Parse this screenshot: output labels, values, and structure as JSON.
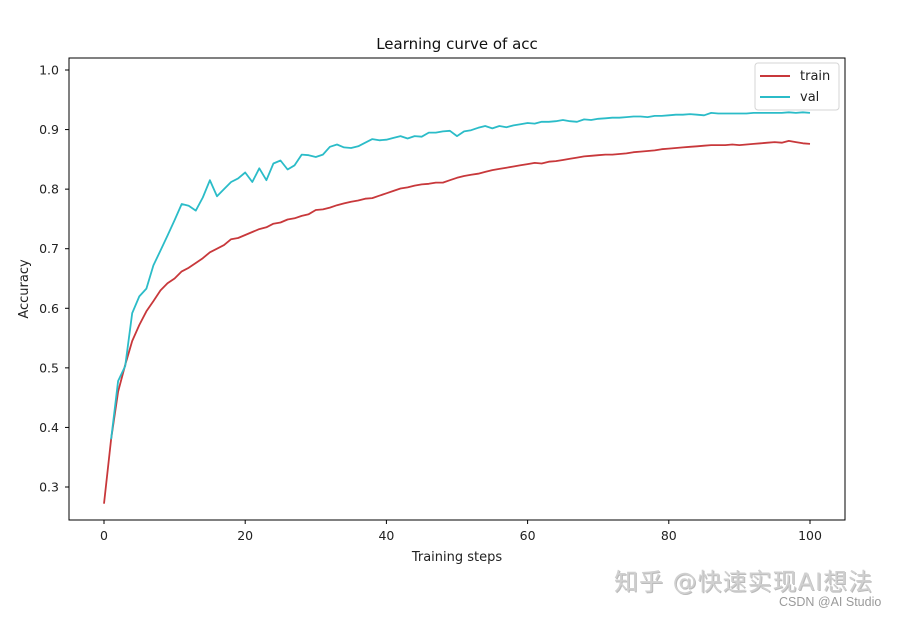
{
  "chart_data": {
    "type": "line",
    "title": "Learning curve of acc",
    "xlabel": "Training steps",
    "ylabel": "Accuracy",
    "xlim": [
      -5,
      105
    ],
    "ylim": [
      0.245,
      1.02
    ],
    "xticks": [
      0,
      20,
      40,
      60,
      80,
      100
    ],
    "yticks": [
      0.3,
      0.4,
      0.5,
      0.6,
      0.7,
      0.8,
      0.9,
      1.0
    ],
    "grid": false,
    "legend_position": "upper right",
    "series": [
      {
        "name": "train",
        "color": "#c8383b",
        "x": [
          0,
          1,
          2,
          3,
          4,
          5,
          6,
          7,
          8,
          9,
          10,
          11,
          12,
          13,
          14,
          15,
          16,
          17,
          18,
          19,
          20,
          21,
          22,
          23,
          24,
          25,
          26,
          27,
          28,
          29,
          30,
          31,
          32,
          33,
          34,
          35,
          36,
          37,
          38,
          39,
          40,
          41,
          42,
          43,
          44,
          45,
          46,
          47,
          48,
          49,
          50,
          51,
          52,
          53,
          54,
          55,
          56,
          57,
          58,
          59,
          60,
          61,
          62,
          63,
          64,
          65,
          66,
          67,
          68,
          69,
          70,
          71,
          72,
          73,
          74,
          75,
          76,
          77,
          78,
          79,
          80,
          81,
          82,
          83,
          84,
          85,
          86,
          87,
          88,
          89,
          90,
          91,
          92,
          93,
          94,
          95,
          96,
          97,
          98,
          99,
          100
        ],
        "values": [
          0.272,
          0.38,
          0.46,
          0.505,
          0.545,
          0.572,
          0.595,
          0.612,
          0.63,
          0.642,
          0.65,
          0.662,
          0.668,
          0.676,
          0.684,
          0.694,
          0.7,
          0.706,
          0.716,
          0.718,
          0.723,
          0.728,
          0.733,
          0.736,
          0.742,
          0.744,
          0.749,
          0.751,
          0.755,
          0.758,
          0.765,
          0.766,
          0.769,
          0.773,
          0.776,
          0.779,
          0.781,
          0.784,
          0.785,
          0.789,
          0.793,
          0.797,
          0.801,
          0.803,
          0.806,
          0.808,
          0.809,
          0.811,
          0.811,
          0.815,
          0.819,
          0.822,
          0.824,
          0.826,
          0.829,
          0.832,
          0.834,
          0.836,
          0.838,
          0.84,
          0.842,
          0.844,
          0.843,
          0.846,
          0.847,
          0.849,
          0.851,
          0.853,
          0.855,
          0.856,
          0.857,
          0.858,
          0.858,
          0.859,
          0.86,
          0.862,
          0.863,
          0.864,
          0.865,
          0.867,
          0.868,
          0.869,
          0.87,
          0.871,
          0.872,
          0.873,
          0.874,
          0.874,
          0.874,
          0.875,
          0.874,
          0.875,
          0.876,
          0.877,
          0.878,
          0.879,
          0.878,
          0.881,
          0.879,
          0.877,
          0.876
        ]
      },
      {
        "name": "val",
        "color": "#2bbcc8",
        "x": [
          1,
          2,
          3,
          4,
          5,
          6,
          7,
          8,
          9,
          10,
          11,
          12,
          13,
          14,
          15,
          16,
          17,
          18,
          19,
          20,
          21,
          22,
          23,
          24,
          25,
          26,
          27,
          28,
          29,
          30,
          31,
          32,
          33,
          34,
          35,
          36,
          37,
          38,
          39,
          40,
          41,
          42,
          43,
          44,
          45,
          46,
          47,
          48,
          49,
          50,
          51,
          52,
          53,
          54,
          55,
          56,
          57,
          58,
          59,
          60,
          61,
          62,
          63,
          64,
          65,
          66,
          67,
          68,
          69,
          70,
          71,
          72,
          73,
          74,
          75,
          76,
          77,
          78,
          79,
          80,
          81,
          82,
          83,
          84,
          85,
          86,
          87,
          88,
          89,
          90,
          91,
          92,
          93,
          94,
          95,
          96,
          97,
          98,
          99,
          100
        ],
        "values": [
          0.38,
          0.478,
          0.503,
          0.592,
          0.62,
          0.633,
          0.672,
          0.697,
          0.722,
          0.748,
          0.775,
          0.772,
          0.764,
          0.786,
          0.815,
          0.788,
          0.8,
          0.812,
          0.818,
          0.828,
          0.812,
          0.835,
          0.815,
          0.843,
          0.848,
          0.833,
          0.84,
          0.858,
          0.857,
          0.854,
          0.858,
          0.871,
          0.875,
          0.87,
          0.869,
          0.872,
          0.878,
          0.884,
          0.882,
          0.883,
          0.886,
          0.889,
          0.885,
          0.889,
          0.888,
          0.895,
          0.895,
          0.897,
          0.898,
          0.889,
          0.897,
          0.899,
          0.903,
          0.906,
          0.902,
          0.906,
          0.904,
          0.907,
          0.909,
          0.911,
          0.91,
          0.913,
          0.913,
          0.914,
          0.916,
          0.914,
          0.913,
          0.917,
          0.916,
          0.918,
          0.919,
          0.92,
          0.92,
          0.921,
          0.922,
          0.922,
          0.921,
          0.923,
          0.923,
          0.924,
          0.925,
          0.925,
          0.926,
          0.925,
          0.924,
          0.928,
          0.927,
          0.927,
          0.927,
          0.927,
          0.927,
          0.928,
          0.928,
          0.928,
          0.928,
          0.928,
          0.929,
          0.928,
          0.929,
          0.928
        ]
      }
    ]
  },
  "legend": {
    "items": [
      {
        "label": "train",
        "color": "#c8383b"
      },
      {
        "label": "val",
        "color": "#2bbcc8"
      }
    ]
  },
  "watermark": {
    "primary": "知乎 @快速实现AI想法",
    "secondary": "CSDN @AI Studio"
  }
}
